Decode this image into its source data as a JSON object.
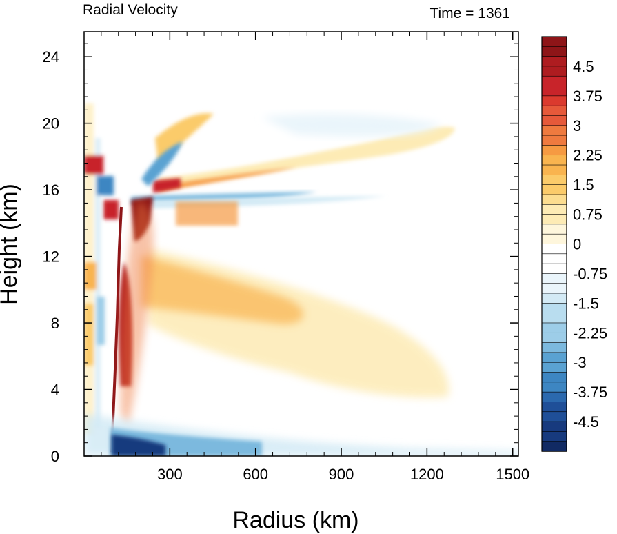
{
  "chart_data": {
    "type": "heatmap",
    "title_left": "Radial Velocity",
    "title_right": "Time = 1361",
    "xlabel": "Radius (km)",
    "ylabel": "Height (km)",
    "xlim": [
      0,
      1520
    ],
    "ylim": [
      0,
      25.5
    ],
    "x_ticks": [
      300,
      600,
      900,
      1200,
      1500
    ],
    "x_tick_labels": [
      "300",
      "600",
      "900",
      "1200",
      "1500"
    ],
    "y_ticks": [
      0,
      4,
      8,
      12,
      16,
      20,
      24
    ],
    "y_tick_labels": [
      "0",
      "4",
      "8",
      "12",
      "16",
      "20",
      "24"
    ],
    "colorbar": {
      "min": -5.25,
      "max": 5.25,
      "step": 0.25,
      "tick_values": [
        4.5,
        3.75,
        3,
        2.25,
        1.5,
        0.75,
        0,
        -0.75,
        -1.5,
        -2.25,
        -3,
        -3.75,
        -4.5
      ],
      "tick_labels": [
        "4.5",
        "3.75",
        "3",
        "2.25",
        "1.5",
        "0.75",
        "0",
        "-0.75",
        "-1.5",
        "-2.25",
        "-3",
        "-3.75",
        "-4.5"
      ],
      "colors_top_to_bottom": [
        "#8e1518",
        "#ae1c20",
        "#c8242a",
        "#db3a2e",
        "#e6593a",
        "#ef7a3f",
        "#f69a42",
        "#f9b44f",
        "#fbcb6a",
        "#fcdd90",
        "#fdebb5",
        "#fef6dc",
        "#ffffff",
        "#ffffff",
        "#eaf5fb",
        "#d3eaf5",
        "#b9ddef",
        "#9dcde8",
        "#7cb9de",
        "#5aa2d2",
        "#3d86c2",
        "#2b69ae",
        "#1f4f98",
        "#173a7e",
        "#112a63"
      ]
    },
    "features": [
      {
        "name": "outflow_layer_upper",
        "x_range": [
          230,
          1360
        ],
        "height_km": [
          16.5,
          19.2
        ],
        "sign": "positive",
        "peak": 5.0
      },
      {
        "name": "inflow_layer_upper",
        "x_range": [
          180,
          560
        ],
        "height_km": [
          15.4,
          16.3
        ],
        "sign": "negative",
        "peak": -2.5
      },
      {
        "name": "mid_level_outflow",
        "x_range": [
          200,
          1300
        ],
        "height_km": [
          5,
          11
        ],
        "sign": "positive",
        "peak": 2.0
      },
      {
        "name": "eyewall_updraft_core",
        "x_range": [
          110,
          240
        ],
        "height_km": [
          1,
          15
        ],
        "sign": "positive",
        "peak": 5.5
      },
      {
        "name": "boundary_layer_inflow",
        "x_range": [
          90,
          1100
        ],
        "height_km": [
          0,
          1.5
        ],
        "sign": "negative",
        "peak": -5.5
      }
    ]
  }
}
